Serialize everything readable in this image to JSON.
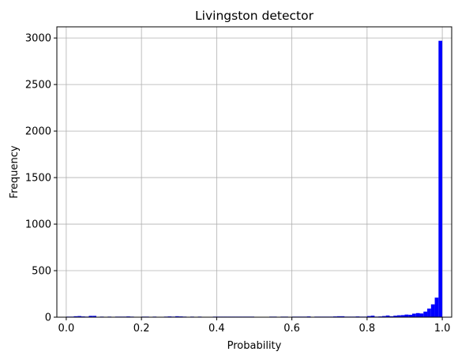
{
  "chart_data": {
    "type": "bar",
    "title": "Livingston detector",
    "xlabel": "Probability",
    "ylabel": "Frequency",
    "xlim": [
      -0.025,
      1.025
    ],
    "ylim": [
      0,
      3120
    ],
    "xticks": [
      0.0,
      0.2,
      0.4,
      0.6,
      0.8,
      1.0
    ],
    "xtick_labels": [
      "0.0",
      "0.2",
      "0.4",
      "0.6",
      "0.8",
      "1.0"
    ],
    "yticks": [
      0,
      500,
      1000,
      1500,
      2000,
      2500,
      3000
    ],
    "ytick_labels": [
      "0",
      "500",
      "1000",
      "1500",
      "2000",
      "2500",
      "3000"
    ],
    "grid": true,
    "bar_color": "#0000ff",
    "bin_width": 0.01,
    "bin_starts": [
      0.0,
      0.01,
      0.02,
      0.03,
      0.04,
      0.05,
      0.06,
      0.07,
      0.08,
      0.09,
      0.1,
      0.11,
      0.12,
      0.13,
      0.14,
      0.15,
      0.16,
      0.17,
      0.18,
      0.19,
      0.2,
      0.21,
      0.22,
      0.23,
      0.24,
      0.25,
      0.26,
      0.27,
      0.28,
      0.29,
      0.3,
      0.31,
      0.32,
      0.33,
      0.34,
      0.35,
      0.36,
      0.37,
      0.38,
      0.39,
      0.4,
      0.41,
      0.42,
      0.43,
      0.44,
      0.45,
      0.46,
      0.47,
      0.48,
      0.49,
      0.5,
      0.51,
      0.52,
      0.53,
      0.54,
      0.55,
      0.56,
      0.57,
      0.58,
      0.59,
      0.6,
      0.61,
      0.62,
      0.63,
      0.64,
      0.65,
      0.66,
      0.67,
      0.68,
      0.69,
      0.7,
      0.71,
      0.72,
      0.73,
      0.74,
      0.75,
      0.76,
      0.77,
      0.78,
      0.79,
      0.8,
      0.81,
      0.82,
      0.83,
      0.84,
      0.85,
      0.86,
      0.87,
      0.88,
      0.89,
      0.9,
      0.91,
      0.92,
      0.93,
      0.94,
      0.95,
      0.96,
      0.97,
      0.98,
      0.99
    ],
    "values": [
      6,
      6,
      10,
      12,
      8,
      6,
      14,
      14,
      0,
      6,
      0,
      6,
      0,
      6,
      6,
      6,
      8,
      6,
      0,
      0,
      6,
      6,
      0,
      6,
      0,
      0,
      6,
      8,
      6,
      10,
      8,
      6,
      0,
      6,
      0,
      6,
      0,
      0,
      0,
      6,
      6,
      6,
      6,
      6,
      6,
      6,
      6,
      6,
      6,
      6,
      0,
      0,
      0,
      0,
      6,
      6,
      0,
      6,
      6,
      0,
      6,
      6,
      6,
      6,
      8,
      0,
      6,
      6,
      6,
      6,
      6,
      8,
      10,
      10,
      6,
      6,
      6,
      8,
      6,
      6,
      12,
      16,
      6,
      8,
      12,
      18,
      10,
      16,
      20,
      22,
      28,
      26,
      38,
      44,
      40,
      60,
      92,
      138,
      210,
      2970
    ]
  }
}
